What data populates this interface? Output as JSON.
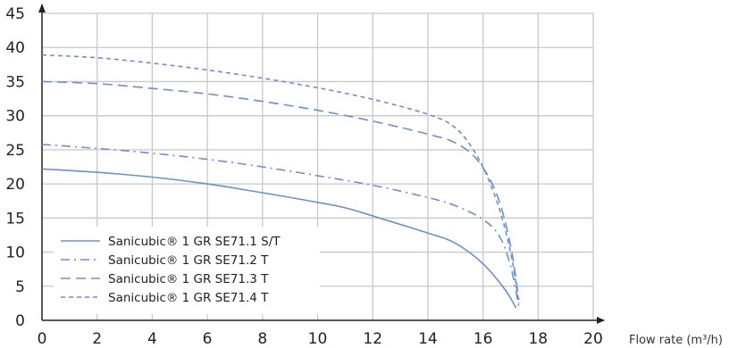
{
  "chart_data": {
    "type": "line",
    "title": "",
    "xlabel": "Flow rate (m³/h)",
    "ylabel": "",
    "xlim": [
      0,
      20
    ],
    "ylim": [
      0,
      45
    ],
    "x_ticks": [
      0,
      2,
      4,
      6,
      8,
      10,
      12,
      14,
      16,
      18,
      20
    ],
    "y_ticks": [
      0,
      5,
      10,
      15,
      20,
      25,
      30,
      35,
      40,
      45
    ],
    "grid": true,
    "legend_position": "bottom-left",
    "series": [
      {
        "name": "Sanicubic® 1 GR SE71.1 S/T",
        "style": "solid",
        "color": "#6f8fc9",
        "points": [
          [
            0,
            22.2
          ],
          [
            2,
            21.7
          ],
          [
            4,
            21
          ],
          [
            6,
            20
          ],
          [
            8,
            18.7
          ],
          [
            10,
            17.3
          ],
          [
            11,
            16.5
          ],
          [
            12,
            15.3
          ],
          [
            14,
            12.8
          ],
          [
            15,
            11.3
          ],
          [
            16,
            8.3
          ],
          [
            16.8,
            4.5
          ],
          [
            17.2,
            1.8
          ]
        ]
      },
      {
        "name": "Sanicubic® 1 GR SE71.2 T",
        "style": "dashdot",
        "color": "#6f8fc9",
        "points": [
          [
            0,
            25.8
          ],
          [
            2,
            25.2
          ],
          [
            4,
            24.5
          ],
          [
            6,
            23.6
          ],
          [
            8,
            22.5
          ],
          [
            10,
            21.2
          ],
          [
            12,
            19.8
          ],
          [
            14,
            18
          ],
          [
            15,
            16.8
          ],
          [
            16,
            14.8
          ],
          [
            16.6,
            12.3
          ],
          [
            17,
            8
          ],
          [
            17.3,
            2
          ]
        ]
      },
      {
        "name": "Sanicubic® 1 GR SE71.3 T",
        "style": "dashed",
        "color": "#6f8fc9",
        "points": [
          [
            0,
            35
          ],
          [
            2,
            34.7
          ],
          [
            4,
            34
          ],
          [
            6,
            33.2
          ],
          [
            8,
            32.1
          ],
          [
            10,
            30.8
          ],
          [
            12,
            29.2
          ],
          [
            14,
            27.3
          ],
          [
            15,
            26
          ],
          [
            15.8,
            23.5
          ],
          [
            16.5,
            18.5
          ],
          [
            17,
            11
          ],
          [
            17.3,
            3
          ]
        ]
      },
      {
        "name": "Sanicubic® 1 GR SE71.4 T",
        "style": "shortdash",
        "color": "#6f8fc9",
        "points": [
          [
            0,
            38.9
          ],
          [
            2,
            38.5
          ],
          [
            4,
            37.7
          ],
          [
            6,
            36.7
          ],
          [
            8,
            35.5
          ],
          [
            10,
            34.1
          ],
          [
            12,
            32.4
          ],
          [
            14,
            30.2
          ],
          [
            15,
            28.2
          ],
          [
            15.8,
            24
          ],
          [
            16.5,
            17.5
          ],
          [
            17,
            10
          ],
          [
            17.3,
            2.5
          ]
        ]
      }
    ]
  }
}
